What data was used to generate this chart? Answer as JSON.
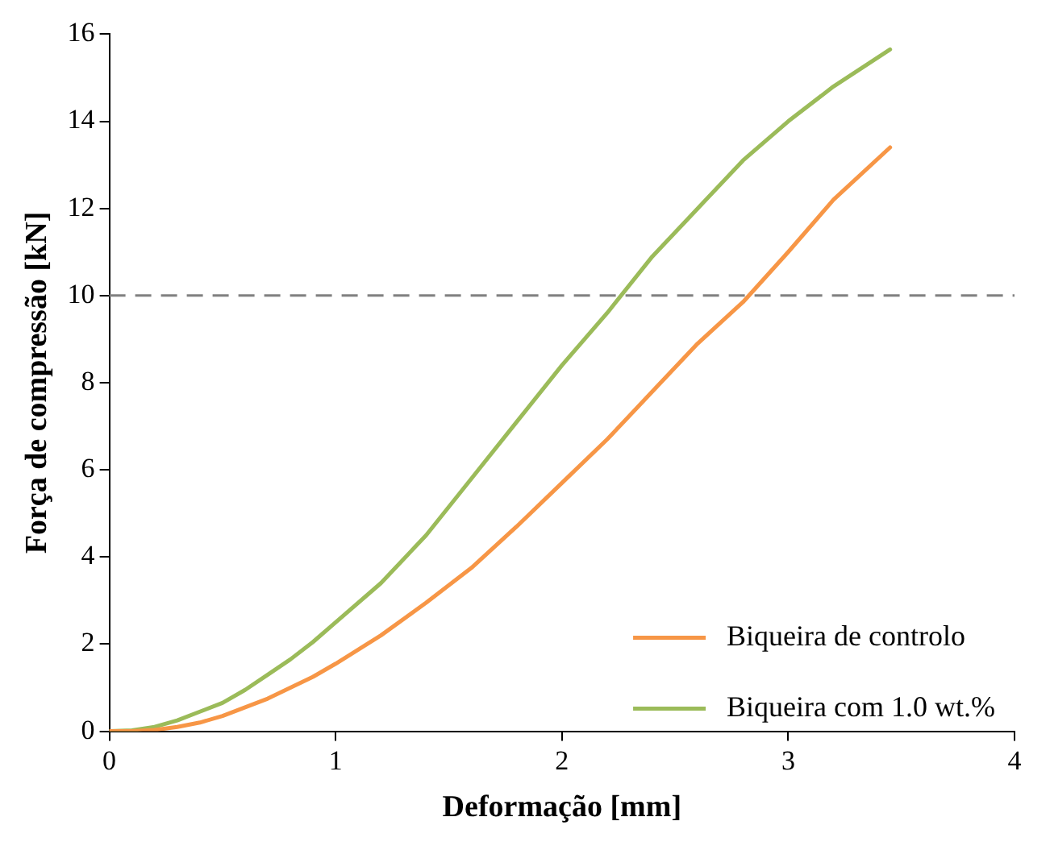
{
  "chart_data": {
    "type": "line",
    "xlabel": "Deformação [mm]",
    "ylabel": "Força de compressão [kN]",
    "xlim": [
      0,
      4
    ],
    "xticks": [
      0,
      1,
      2,
      3,
      4
    ],
    "ylim": [
      0,
      16
    ],
    "yticks": [
      0,
      2,
      4,
      6,
      8,
      10,
      12,
      14,
      16
    ],
    "grid": false,
    "legend": "bottom right",
    "marker": "none",
    "line_style": "solid",
    "ref_lines": [
      {
        "axis": "y",
        "value": 10,
        "label": null,
        "color": "#808080",
        "line_style": "dashed"
      }
    ],
    "series": [
      {
        "name": "Biqueira de controlo",
        "color": "#f79646",
        "x": [
          0,
          0.1,
          0.2,
          0.3,
          0.4,
          0.5,
          0.6,
          0.7,
          0.8,
          0.9,
          1.0,
          1.2,
          1.4,
          1.6,
          1.8,
          2.0,
          2.2,
          2.4,
          2.6,
          2.8,
          3.0,
          3.2,
          3.45
        ],
        "values": [
          0,
          0,
          0.03,
          0.1,
          0.2,
          0.35,
          0.55,
          0.75,
          1.0,
          1.25,
          1.55,
          2.2,
          2.95,
          3.75,
          4.7,
          5.7,
          6.7,
          7.8,
          8.9,
          9.85,
          11.0,
          12.2,
          13.4
        ]
      },
      {
        "name": "Biqueira com 1.0 wt.%",
        "color": "#9bbb59",
        "x": [
          0,
          0.1,
          0.2,
          0.3,
          0.4,
          0.5,
          0.6,
          0.7,
          0.8,
          0.9,
          1.0,
          1.2,
          1.4,
          1.6,
          1.8,
          2.0,
          2.2,
          2.4,
          2.6,
          2.8,
          3.0,
          3.2,
          3.45
        ],
        "values": [
          0,
          0.02,
          0.1,
          0.25,
          0.45,
          0.65,
          0.95,
          1.3,
          1.65,
          2.05,
          2.5,
          3.4,
          4.5,
          5.8,
          7.1,
          8.4,
          9.6,
          10.9,
          12.0,
          13.1,
          14.0,
          14.8,
          15.65
        ]
      }
    ]
  }
}
